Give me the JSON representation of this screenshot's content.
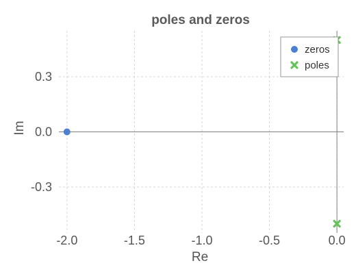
{
  "chart_data": {
    "type": "scatter",
    "title": "poles and zeros",
    "xlabel": "Re",
    "ylabel": "Im",
    "xlim": [
      -2.06,
      0.05
    ],
    "ylim": [
      -0.55,
      0.55
    ],
    "xticks": [
      -2.0,
      -1.5,
      -1.0,
      -0.5,
      0.0
    ],
    "xtick_labels": [
      "-2.0",
      "-1.5",
      "-1.0",
      "-0.5",
      "0.0"
    ],
    "yticks": [
      -0.3,
      0.0,
      0.3
    ],
    "ytick_labels": [
      "-0.3",
      "0.0",
      "0.3"
    ],
    "grid": true,
    "legend_position": "top-right",
    "series": [
      {
        "name": "zeros",
        "marker": "circle",
        "color": "#4a7fd4",
        "points": [
          [
            -2.0,
            0.0
          ]
        ]
      },
      {
        "name": "poles",
        "marker": "x",
        "color": "#66c25a",
        "points": [
          [
            0.0,
            0.5
          ],
          [
            0.0,
            -0.5
          ]
        ]
      }
    ]
  }
}
